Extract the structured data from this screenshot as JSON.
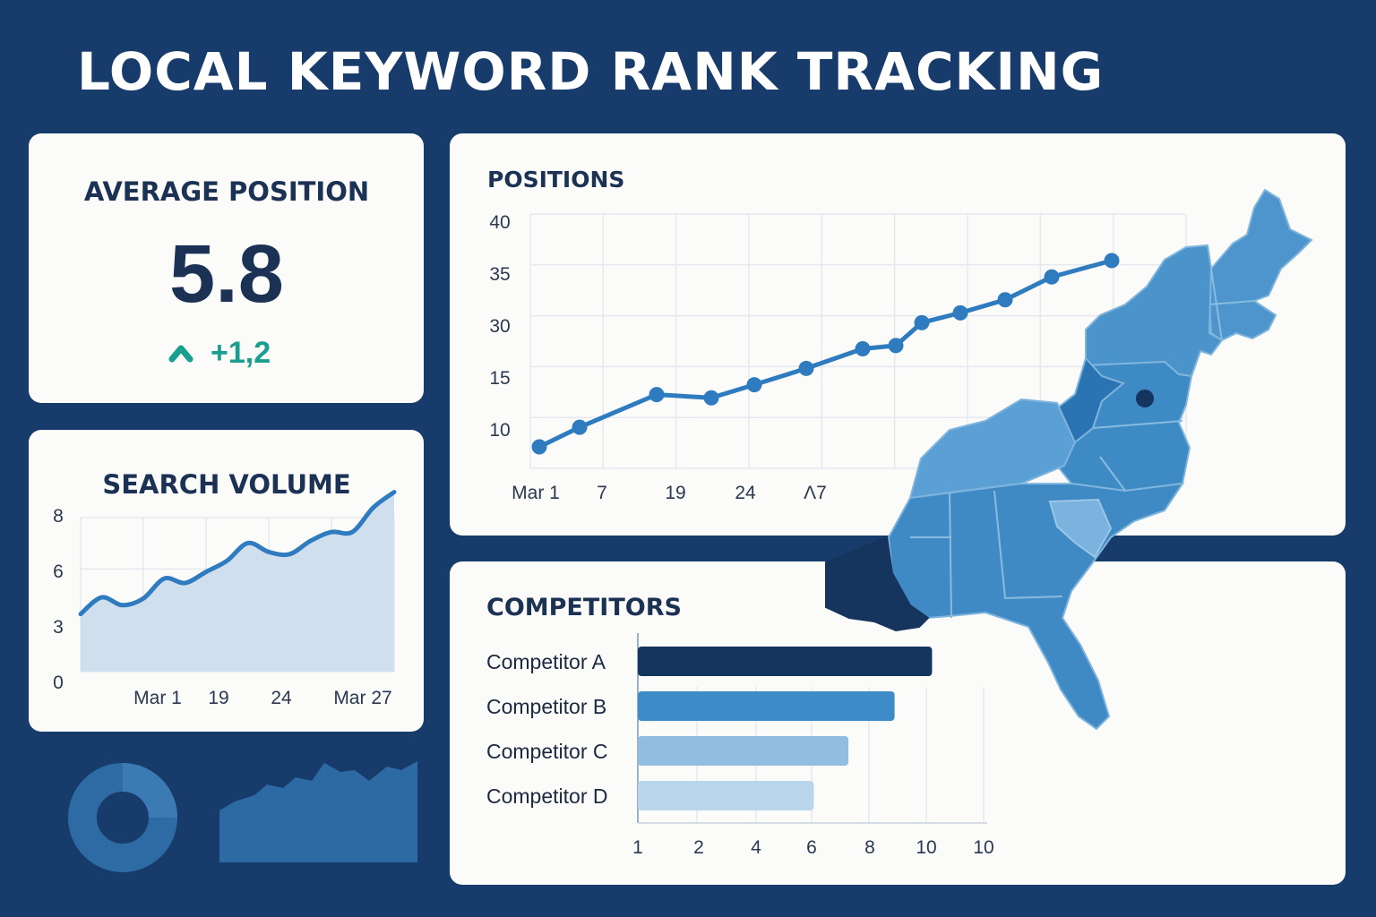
{
  "header": {
    "title": "LOCAL KEYWORD RANK TRACKING"
  },
  "average_position": {
    "title": "AVERAGE POSITION",
    "value": "5.8",
    "change": "+1,2",
    "trend_icon": "up-chevron-icon",
    "trend_color": "#1a9e8f"
  },
  "colors": {
    "background": "#173b6a",
    "card": "#fbfbf9",
    "heading": "#1b3255",
    "line": "#2f7bbf",
    "area": "#cfdfee",
    "map_base": "#4d95cc"
  },
  "chart_data": [
    {
      "id": "search-volume",
      "type": "area",
      "title": "SEARCH VOLUME",
      "y_ticks": [
        "8",
        "6",
        "3",
        "0"
      ],
      "x_ticks": [
        "Mar 1",
        "19",
        "24",
        "Mar 27"
      ],
      "ylim": [
        0,
        8
      ],
      "grid": true,
      "series": [
        {
          "values": [
            2.6,
            3.35,
            3.0,
            3.3,
            4.2,
            4.0,
            4.5,
            5.0,
            5.8,
            5.4,
            5.3,
            5.9,
            6.3,
            6.3,
            7.4,
            8.1
          ]
        }
      ]
    },
    {
      "id": "positions",
      "type": "line",
      "title": "POSITIONS",
      "y_ticks": [
        "40",
        "35",
        "30",
        "15",
        "10"
      ],
      "x_ticks": [
        "Mar 1",
        "7",
        "19",
        "24",
        "Λ7"
      ],
      "grid": true,
      "series": [
        {
          "values": [
            8,
            11,
            16,
            15.5,
            17.5,
            20,
            23,
            23.5,
            27,
            28.5,
            30.5,
            34,
            36.5
          ]
        }
      ]
    },
    {
      "id": "competitors",
      "type": "bar",
      "orientation": "horizontal",
      "title": "COMPETITORS",
      "categories": [
        "Competitor A",
        "Competitor B",
        "Competitor C",
        "Competitor D"
      ],
      "x_ticks": [
        "1",
        "2",
        "4",
        "6",
        "8",
        "10",
        "10"
      ],
      "series": [
        {
          "values": [
            10.2,
            8.9,
            7.3,
            6.1
          ],
          "colors": [
            "#15355f",
            "#3d8cc8",
            "#90bde0",
            "#bad6ed"
          ]
        }
      ]
    }
  ]
}
